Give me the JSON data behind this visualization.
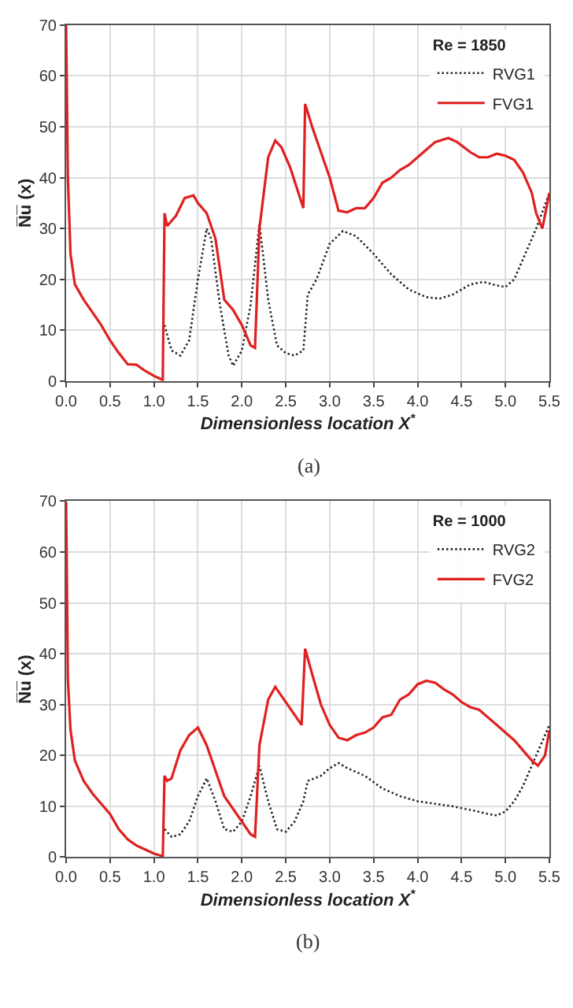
{
  "chart_data": [
    {
      "type": "line",
      "xlabel": "Dimensionless location X$^{*}$",
      "ylabel": "N̅u̅ (x)",
      "legend_title": "Re = 1850",
      "annotations": [
        "(a)"
      ],
      "xlim": [
        0,
        5.5
      ],
      "xticks": [
        {
          "value": 0,
          "label": "0.0"
        },
        0.5,
        {
          "value": 1,
          "label": "1.0"
        },
        1.5,
        {
          "value": 2,
          "label": "2.0"
        },
        2.5,
        {
          "value": 3,
          "label": "3.0"
        },
        3.5,
        {
          "value": 4,
          "label": "4.0"
        },
        4.5,
        {
          "value": 5,
          "label": "5.0"
        },
        5.5
      ],
      "ylim": [
        0,
        70
      ],
      "yticks": [
        0,
        10,
        20,
        30,
        40,
        50,
        60,
        70
      ],
      "grid": true,
      "legend": "top right",
      "marker": "none",
      "series": [
        {
          "name": "RVG1",
          "color": "#222222",
          "line_style": "dotted",
          "x": [
            1.12,
            1.2,
            1.3,
            1.4,
            1.5,
            1.6,
            1.65,
            1.75,
            1.85,
            1.9,
            2.0,
            2.1,
            2.2,
            2.3,
            2.4,
            2.5,
            2.6,
            2.7,
            2.75,
            2.85,
            3.0,
            3.15,
            3.3,
            3.5,
            3.7,
            3.9,
            4.1,
            4.25,
            4.4,
            4.6,
            4.75,
            4.9,
            5.0,
            5.1,
            5.2,
            5.35,
            5.5
          ],
          "values": [
            11,
            6,
            5,
            8,
            20,
            30,
            28,
            15,
            5,
            3,
            6,
            15,
            31,
            16,
            7,
            5.5,
            5,
            6,
            17,
            20,
            27,
            29.5,
            28.5,
            25,
            21,
            18,
            16.5,
            16.2,
            17,
            19,
            19.5,
            18.8,
            18.5,
            20,
            24,
            30,
            37
          ]
        },
        {
          "name": "FVG1",
          "color": "#e02020",
          "line_style": "solid",
          "x": [
            0,
            0.02,
            0.05,
            0.1,
            0.2,
            0.3,
            0.4,
            0.5,
            0.6,
            0.7,
            0.8,
            0.9,
            1.0,
            1.1,
            1.12,
            1.15,
            1.25,
            1.35,
            1.45,
            1.5,
            1.6,
            1.7,
            1.8,
            1.9,
            2.0,
            2.1,
            2.15,
            2.2,
            2.3,
            2.38,
            2.45,
            2.55,
            2.7,
            2.72,
            2.8,
            2.9,
            3.0,
            3.1,
            3.2,
            3.3,
            3.4,
            3.5,
            3.6,
            3.7,
            3.8,
            3.9,
            4.0,
            4.1,
            4.2,
            4.35,
            4.45,
            4.6,
            4.7,
            4.8,
            4.9,
            5.0,
            5.1,
            5.2,
            5.3,
            5.35,
            5.42,
            5.5
          ],
          "values": [
            70,
            40,
            25,
            19,
            16,
            13.5,
            11,
            8,
            5.5,
            3.3,
            3.2,
            2,
            1,
            0.2,
            33,
            30.5,
            32.5,
            36,
            36.5,
            35,
            33,
            28,
            16,
            14,
            11,
            7,
            6.5,
            30,
            44,
            47.3,
            46,
            42,
            34,
            54.5,
            50,
            45,
            40,
            33.5,
            33.2,
            34,
            34,
            36,
            39,
            40,
            41.5,
            42.5,
            44,
            45.5,
            47,
            47.8,
            47,
            45,
            44,
            44,
            44.7,
            44.3,
            43.5,
            41,
            37,
            33,
            30,
            37
          ]
        }
      ]
    },
    {
      "type": "line",
      "xlabel": "Dimensionless location X$^{*}$",
      "ylabel": "N̅u̅ (x)",
      "legend_title": "Re = 1000",
      "annotations": [
        "(b)"
      ],
      "xlim": [
        0,
        5.5
      ],
      "xticks": [
        {
          "value": 0,
          "label": "0.0"
        },
        0.5,
        {
          "value": 1,
          "label": "1.0"
        },
        1.5,
        {
          "value": 2,
          "label": "2.0"
        },
        2.5,
        {
          "value": 3,
          "label": "3.0"
        },
        3.5,
        {
          "value": 4,
          "label": "4.0"
        },
        4.5,
        {
          "value": 5,
          "label": "5.0"
        },
        5.5
      ],
      "ylim": [
        0,
        70
      ],
      "yticks": [
        0,
        10,
        20,
        30,
        40,
        50,
        60,
        70
      ],
      "grid": true,
      "legend": "top right",
      "marker": "none",
      "series": [
        {
          "name": "RVG2",
          "color": "#222222",
          "line_style": "dotted",
          "x": [
            1.12,
            1.2,
            1.3,
            1.4,
            1.5,
            1.6,
            1.7,
            1.8,
            1.9,
            2.0,
            2.1,
            2.2,
            2.3,
            2.4,
            2.5,
            2.6,
            2.7,
            2.75,
            2.9,
            3.0,
            3.1,
            3.2,
            3.4,
            3.6,
            3.8,
            4.0,
            4.2,
            4.4,
            4.6,
            4.8,
            4.9,
            5.0,
            5.1,
            5.2,
            5.3,
            5.4,
            5.5
          ],
          "values": [
            5.5,
            4,
            4.5,
            7,
            12,
            15.5,
            11,
            5.5,
            5,
            7,
            12,
            18,
            11,
            5.5,
            5,
            7,
            11,
            15,
            16,
            17.5,
            18.5,
            17.5,
            16,
            13.5,
            12,
            11,
            10.5,
            10,
            9.3,
            8.5,
            8.2,
            9,
            11,
            14,
            18,
            22,
            26
          ]
        },
        {
          "name": "FVG2",
          "color": "#e02020",
          "line_style": "solid",
          "x": [
            0,
            0.02,
            0.05,
            0.1,
            0.2,
            0.3,
            0.4,
            0.5,
            0.6,
            0.7,
            0.8,
            0.9,
            1.0,
            1.1,
            1.12,
            1.15,
            1.2,
            1.3,
            1.4,
            1.5,
            1.6,
            1.7,
            1.8,
            1.9,
            2.0,
            2.1,
            2.15,
            2.2,
            2.3,
            2.38,
            2.5,
            2.6,
            2.68,
            2.72,
            2.8,
            2.9,
            3.0,
            3.1,
            3.2,
            3.3,
            3.4,
            3.5,
            3.6,
            3.7,
            3.8,
            3.9,
            4.0,
            4.1,
            4.2,
            4.3,
            4.4,
            4.5,
            4.6,
            4.7,
            4.8,
            4.9,
            5.0,
            5.1,
            5.2,
            5.3,
            5.37,
            5.45,
            5.5
          ],
          "values": [
            70,
            35,
            25,
            19,
            15,
            12.5,
            10.5,
            8.5,
            5.5,
            3.5,
            2.3,
            1.5,
            0.7,
            0.2,
            16,
            15,
            15.5,
            21,
            24,
            25.5,
            22,
            17,
            12,
            9.5,
            7,
            4.5,
            4,
            22,
            31,
            33.5,
            30.5,
            28,
            26,
            41,
            36,
            30,
            26,
            23.5,
            23,
            24,
            24.5,
            25.5,
            27.5,
            28,
            31,
            32,
            34,
            34.7,
            34.3,
            33,
            32,
            30.5,
            29.5,
            29,
            27.5,
            26,
            24.5,
            23,
            21,
            19,
            18,
            20,
            25
          ]
        }
      ]
    }
  ]
}
